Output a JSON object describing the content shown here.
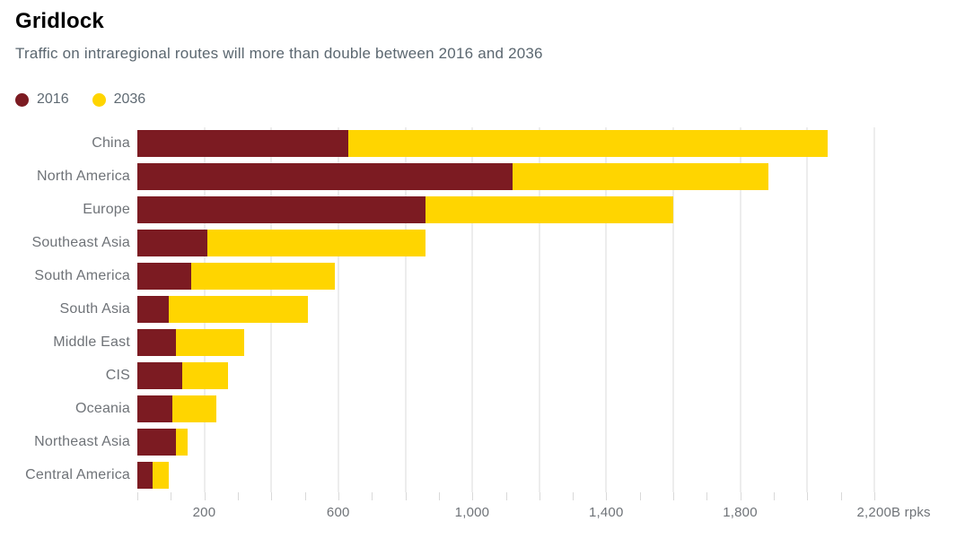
{
  "header": {
    "title": "Gridlock",
    "subtitle": "Traffic on intraregional routes will more than double between 2016 and 2036"
  },
  "legend": {
    "items": [
      {
        "label": "2016",
        "color": "#7c1b22"
      },
      {
        "label": "2036",
        "color": "#ffd500"
      }
    ]
  },
  "chart_data": {
    "type": "bar",
    "orientation": "horizontal",
    "stacked": true,
    "title": "Gridlock",
    "subtitle": "Traffic on intraregional routes will more than double between 2016 and 2036",
    "unit": "B rpks",
    "categories": [
      "China",
      "North America",
      "Europe",
      "Southeast Asia",
      "South America",
      "South Asia",
      "Middle East",
      "CIS",
      "Oceania",
      "Northeast Asia",
      "Central America"
    ],
    "series": [
      {
        "name": "2016",
        "color": "#7c1b22",
        "values": [
          630,
          1120,
          860,
          210,
          160,
          95,
          115,
          135,
          105,
          115,
          45
        ]
      },
      {
        "name": "2036",
        "color": "#ffd500",
        "values": [
          1430,
          765,
          740,
          650,
          430,
          415,
          205,
          135,
          130,
          35,
          50
        ]
      }
    ],
    "bar_totals": [
      2060,
      1885,
      1600,
      860,
      590,
      510,
      320,
      270,
      235,
      150,
      95
    ],
    "xlim": [
      0,
      2200
    ],
    "x_ticks": {
      "minor_step": 100,
      "grid_step": 200,
      "labeled": [
        {
          "value": 200,
          "label": "200"
        },
        {
          "value": 600,
          "label": "600"
        },
        {
          "value": 1000,
          "label": "1,000"
        },
        {
          "value": 1400,
          "label": "1,400"
        },
        {
          "value": 1800,
          "label": "1,800"
        },
        {
          "value": 2200,
          "label": "2,200",
          "suffix": "B rpks"
        }
      ]
    },
    "grid": true,
    "legend_position": "top-left"
  },
  "colors": {
    "background": "#ffffff",
    "title": "#000000",
    "subtitle": "#5b6770",
    "category_label": "#6f7378",
    "axis_label": "#6f7378",
    "gridline": "#ededed",
    "tick": "#d9d9d9"
  }
}
